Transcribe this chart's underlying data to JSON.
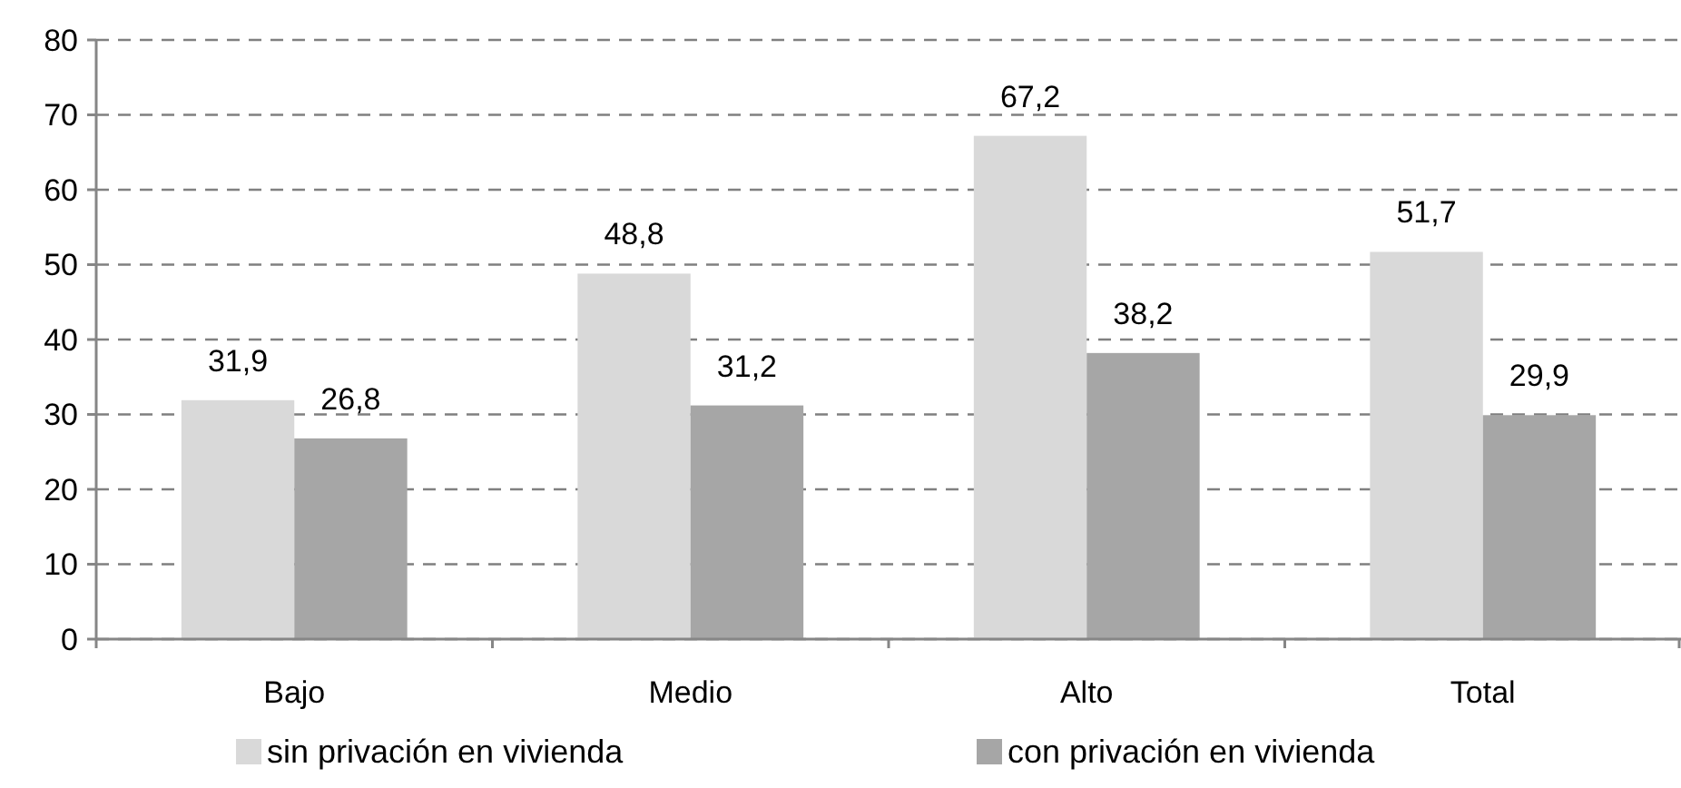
{
  "chart_data": {
    "type": "bar",
    "categories": [
      "Bajo",
      "Medio",
      "Alto",
      "Total"
    ],
    "series": [
      {
        "name": "sin privación en vivienda",
        "color": "#d9d9d9",
        "values": [
          31.9,
          48.8,
          67.2,
          51.7
        ],
        "value_labels": [
          "31,9",
          "48,8",
          "67,2",
          "51,7"
        ]
      },
      {
        "name": "con privación en vivienda",
        "color": "#a6a6a6",
        "values": [
          26.8,
          31.2,
          38.2,
          29.9
        ],
        "value_labels": [
          "26,8",
          "31,2",
          "38,2",
          "29,9"
        ]
      }
    ],
    "ylim": [
      0,
      80
    ],
    "yticks": [
      0,
      10,
      20,
      30,
      40,
      50,
      60,
      70,
      80
    ],
    "grid": "y",
    "line_style": "dashed",
    "legend": "bottom"
  }
}
